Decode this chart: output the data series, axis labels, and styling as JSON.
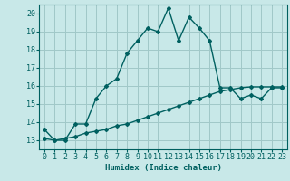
{
  "xlabel": "Humidex (Indice chaleur)",
  "background_color": "#c8e8e8",
  "grid_color": "#a0c8c8",
  "line_color": "#006060",
  "xlim": [
    -0.5,
    23.5
  ],
  "ylim": [
    12.5,
    20.5
  ],
  "yticks": [
    13,
    14,
    15,
    16,
    17,
    18,
    19,
    20
  ],
  "xticks": [
    0,
    1,
    2,
    3,
    4,
    5,
    6,
    7,
    8,
    9,
    10,
    11,
    12,
    13,
    14,
    15,
    16,
    17,
    18,
    19,
    20,
    21,
    22,
    23
  ],
  "series1_x": [
    0,
    1,
    2,
    3,
    4,
    5,
    6,
    7,
    8,
    9,
    10,
    11,
    12,
    13,
    14,
    15,
    16,
    17,
    18,
    19,
    20,
    21,
    22,
    23
  ],
  "series1_y": [
    13.6,
    13.0,
    13.0,
    13.9,
    13.9,
    15.3,
    16.0,
    16.4,
    17.8,
    18.5,
    19.2,
    19.0,
    20.3,
    18.5,
    19.8,
    19.2,
    18.5,
    15.9,
    15.9,
    15.3,
    15.5,
    15.3,
    15.9,
    15.9
  ],
  "series2_x": [
    0,
    1,
    2,
    3,
    4,
    5,
    6,
    7,
    8,
    9,
    10,
    11,
    12,
    13,
    14,
    15,
    16,
    17,
    18,
    19,
    20,
    21,
    22,
    23
  ],
  "series2_y": [
    13.1,
    13.0,
    13.1,
    13.2,
    13.4,
    13.5,
    13.6,
    13.8,
    13.9,
    14.1,
    14.3,
    14.5,
    14.7,
    14.9,
    15.1,
    15.3,
    15.5,
    15.7,
    15.8,
    15.9,
    15.95,
    15.95,
    15.95,
    15.95
  ],
  "marker_style": "D",
  "marker_size": 2,
  "line_width": 1.0,
  "font_size": 6.5
}
